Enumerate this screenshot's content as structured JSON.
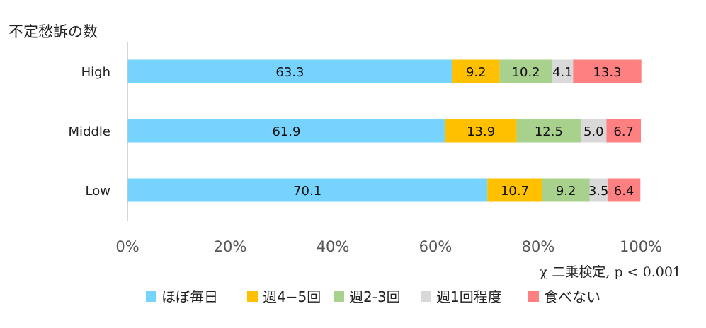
{
  "chart_data": {
    "type": "bar",
    "orientation": "horizontal",
    "stacked": true,
    "percent": true,
    "title": "不定愁訴の数",
    "categories": [
      "High",
      "Middle",
      "Low"
    ],
    "series": [
      {
        "name": "ほぼ毎日",
        "color": "#75d3fd",
        "values": [
          63.3,
          61.9,
          70.1
        ]
      },
      {
        "name": "週4−5回",
        "color": "#ffc000",
        "values": [
          9.2,
          13.9,
          10.7
        ]
      },
      {
        "name": "週2-3回",
        "color": "#a9d18e",
        "values": [
          10.2,
          12.5,
          9.2
        ]
      },
      {
        "name": "週1回程度",
        "color": "#d9d9d9",
        "values": [
          4.1,
          5.0,
          3.5
        ]
      },
      {
        "name": "食べない",
        "color": "#ff8080",
        "values": [
          13.3,
          6.7,
          6.4
        ]
      }
    ],
    "data_labels": [
      [
        "63.3",
        "9.2",
        "10.2",
        "4.1",
        "13.3"
      ],
      [
        "61.9",
        "13.9",
        "12.5",
        "5.0",
        "6.7"
      ],
      [
        "70.1",
        "10.7",
        "9.2",
        "3.5",
        "6.4"
      ]
    ],
    "x_ticks": [
      "0%",
      "20%",
      "40%",
      "60%",
      "80%",
      "100%"
    ],
    "xlim": [
      0,
      100
    ],
    "grid": false,
    "legend_position": "bottom",
    "annotation": "χ 二乗検定, p < 0.001"
  }
}
